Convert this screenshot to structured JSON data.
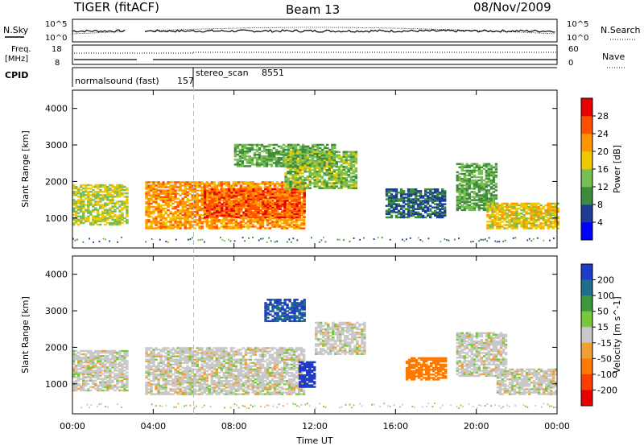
{
  "header": {
    "station": "TIGER (fitACF)",
    "beam": "Beam 13",
    "date": "08/Nov/2009"
  },
  "summary_panels": {
    "nsky_label": "N.Sky",
    "nsky_ticks": [
      "10^5",
      "10^0"
    ],
    "nsearch_label": "N.Search",
    "freq_label_1": "Freq.",
    "freq_label_2": "[MHz]",
    "freq_ticks": [
      "18",
      "8"
    ],
    "nave_label": "Nave",
    "nave_ticks": [
      "60",
      "0"
    ],
    "cpid_label": "CPID",
    "cpid_entries": [
      {
        "name": "normalsound (fast)",
        "id": "157",
        "start_hour": 0
      },
      {
        "name": "stereo_scan",
        "id": "8551",
        "start_hour": 6
      }
    ]
  },
  "colors": {
    "power_scale": [
      "#0000ff",
      "#1e3c96",
      "#3c8c3c",
      "#78be50",
      "#f0c800",
      "#ff9600",
      "#ff5000",
      "#e60000"
    ],
    "velocity_scale": [
      "#1e3cc8",
      "#1e6e8c",
      "#3c963c",
      "#78c83c",
      "#c8c8c8",
      "#f0a032",
      "#ff7800",
      "#ff3c00",
      "#e60000"
    ],
    "gap": "#ffffff"
  },
  "chart_data": [
    {
      "type": "heatmap",
      "name": "power",
      "xlabel": "",
      "ylabel": "Slant Range [km]",
      "xlim_hours": [
        0,
        24
      ],
      "ylim_km": [
        180,
        4500
      ],
      "ytick_labels": [
        "1000",
        "2000",
        "3000",
        "4000"
      ],
      "colorbar_label": "Power [dB]",
      "colorbar_ticks": [
        "4",
        "8",
        "12",
        "16",
        "20",
        "24",
        "28"
      ],
      "data_gap_hours": [
        2.7,
        3.6
      ],
      "regions": [
        {
          "t": [
            0,
            2.7
          ],
          "r": [
            800,
            1900
          ],
          "value_db": 18
        },
        {
          "t": [
            3.6,
            11.5
          ],
          "r": [
            700,
            2000
          ],
          "value_db": 24
        },
        {
          "t": [
            6.5,
            11.5
          ],
          "r": [
            1000,
            1800
          ],
          "value_db": 28
        },
        {
          "t": [
            8,
            13
          ],
          "r": [
            2400,
            3000
          ],
          "value_db": 14
        },
        {
          "t": [
            10.5,
            14
          ],
          "r": [
            1800,
            2800
          ],
          "value_db": 16
        },
        {
          "t": [
            15.5,
            18.5
          ],
          "r": [
            1000,
            1800
          ],
          "value_db": 10
        },
        {
          "t": [
            19,
            21
          ],
          "r": [
            1200,
            2500
          ],
          "value_db": 14
        },
        {
          "t": [
            20.5,
            24
          ],
          "r": [
            700,
            1400
          ],
          "value_db": 20
        }
      ]
    },
    {
      "type": "heatmap",
      "name": "velocity",
      "xlabel": "Time UT",
      "ylabel": "Slant Range [km]",
      "xlim_hours": [
        0,
        24
      ],
      "ylim_km": [
        180,
        4500
      ],
      "xtick_labels": [
        "00:00",
        "04:00",
        "08:00",
        "12:00",
        "16:00",
        "20:00",
        "00:00"
      ],
      "ytick_labels": [
        "1000",
        "2000",
        "3000",
        "4000"
      ],
      "colorbar_label": "Velocity [m s^-1]",
      "colorbar_ticks": [
        "200",
        "100",
        "50",
        "15",
        "-15",
        "-50",
        "-100",
        "-200"
      ],
      "data_gap_hours": [
        2.7,
        3.6
      ],
      "regions": [
        {
          "t": [
            0,
            2.7
          ],
          "r": [
            800,
            1900
          ],
          "value_ms": 0
        },
        {
          "t": [
            3.6,
            11.5
          ],
          "r": [
            700,
            2000
          ],
          "value_ms": 0
        },
        {
          "t": [
            9.5,
            11.5
          ],
          "r": [
            2700,
            3300
          ],
          "value_ms": 150
        },
        {
          "t": [
            11.2,
            12
          ],
          "r": [
            900,
            1600
          ],
          "value_ms": 200
        },
        {
          "t": [
            12,
            14.5
          ],
          "r": [
            1800,
            2700
          ],
          "value_ms": 0
        },
        {
          "t": [
            16.5,
            18.5
          ],
          "r": [
            1100,
            1700
          ],
          "value_ms": -80
        },
        {
          "t": [
            19,
            21.5
          ],
          "r": [
            1200,
            2400
          ],
          "value_ms": 0
        },
        {
          "t": [
            21,
            24
          ],
          "r": [
            700,
            1400
          ],
          "value_ms": 0
        }
      ]
    }
  ]
}
